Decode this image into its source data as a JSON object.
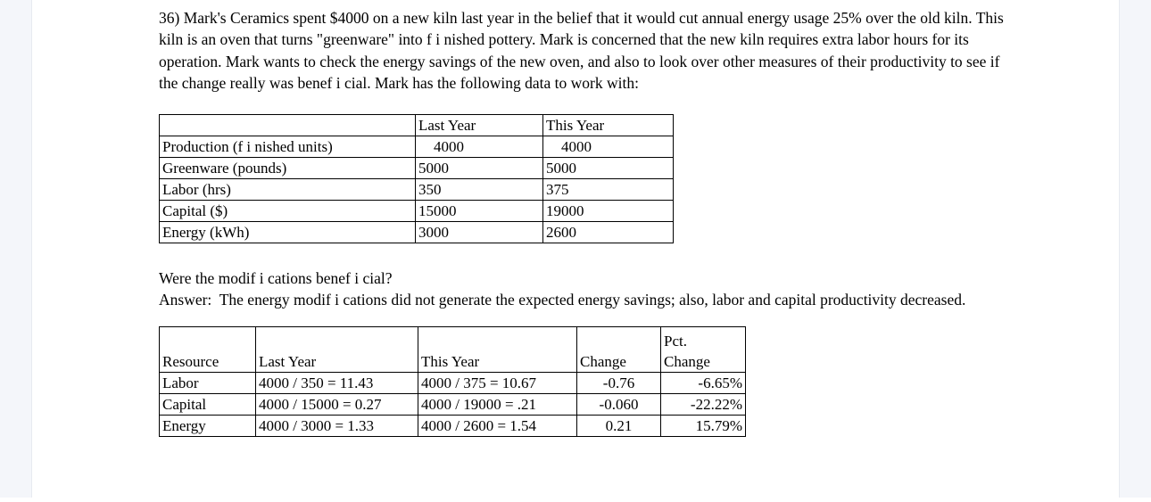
{
  "page": {
    "background_color": "#ffffff",
    "margin_color": "#f4f6fa",
    "margin_border_color": "#e7eaf0",
    "text_color": "#000000",
    "table_border_color": "#000000"
  },
  "problem": {
    "text": "36) Mark's Ceramics spent $4000 on a new kiln last year in the belief that it would cut annual energy usage 25% over the old kiln. This kiln is an oven that turns \"greenware\" into f i nished pottery. Mark is concerned that the new kiln requires extra labor hours for its operation. Mark wants to check the energy savings of the new oven, and also to look over other measures of their productivity to see if the change really was benef i cial. Mark has the following data to work with:"
  },
  "data_table": {
    "headers": [
      "",
      "Last Year",
      "This Year"
    ],
    "rows": [
      {
        "label": "Production (f i nished units)",
        "last_year": "4000",
        "this_year": "4000"
      },
      {
        "label": "Greenware (pounds)",
        "last_year": "5000",
        "this_year": "5000"
      },
      {
        "label": "Labor (hrs)",
        "last_year": "350",
        "this_year": "375"
      },
      {
        "label": "Capital ($)",
        "last_year": "15000",
        "this_year": "19000"
      },
      {
        "label": "Energy (kWh)",
        "last_year": "3000",
        "this_year": "2600"
      }
    ]
  },
  "question": "Were the modif i cations benef i cial?",
  "answer": "Answer:  The energy modif i cations did not generate the expected energy savings; also, labor and capital productivity decreased.",
  "results_table": {
    "headers": {
      "resource": "Resource",
      "last_year": "Last Year",
      "this_year": "This Year",
      "change": "Change",
      "pct_change_line1": "Pct.",
      "pct_change_line2": "Change"
    },
    "rows": [
      {
        "resource": "Labor",
        "last_year": "4000 / 350 = 11.43",
        "this_year": "4000 / 375 = 10.67",
        "change": "-0.76",
        "pct_change": "-6.65%"
      },
      {
        "resource": "Capital",
        "last_year": "4000 / 15000 = 0.27",
        "this_year": "4000 / 19000 = .21",
        "change": "-0.060",
        "pct_change": "-22.22%"
      },
      {
        "resource": "Energy",
        "last_year": "4000 / 3000 = 1.33",
        "this_year": "4000 / 2600 = 1.54",
        "change": "0.21",
        "pct_change": "15.79%"
      }
    ]
  }
}
